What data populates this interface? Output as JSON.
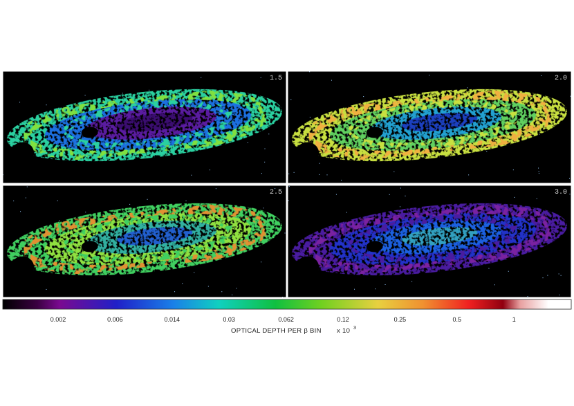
{
  "panels": [
    {
      "label": "1.5"
    },
    {
      "label": "2.0"
    },
    {
      "label": "2.5"
    },
    {
      "label": "3.0"
    }
  ],
  "colorbar": {
    "ticks": [
      "0.002",
      "0.006",
      "0.014",
      "0.03",
      "0.062",
      "0.12",
      "0.25",
      "0.5",
      "1"
    ],
    "label": "OPTICAL DEPTH PER β BIN",
    "multiplier": "x 10",
    "exponent": "3"
  }
}
